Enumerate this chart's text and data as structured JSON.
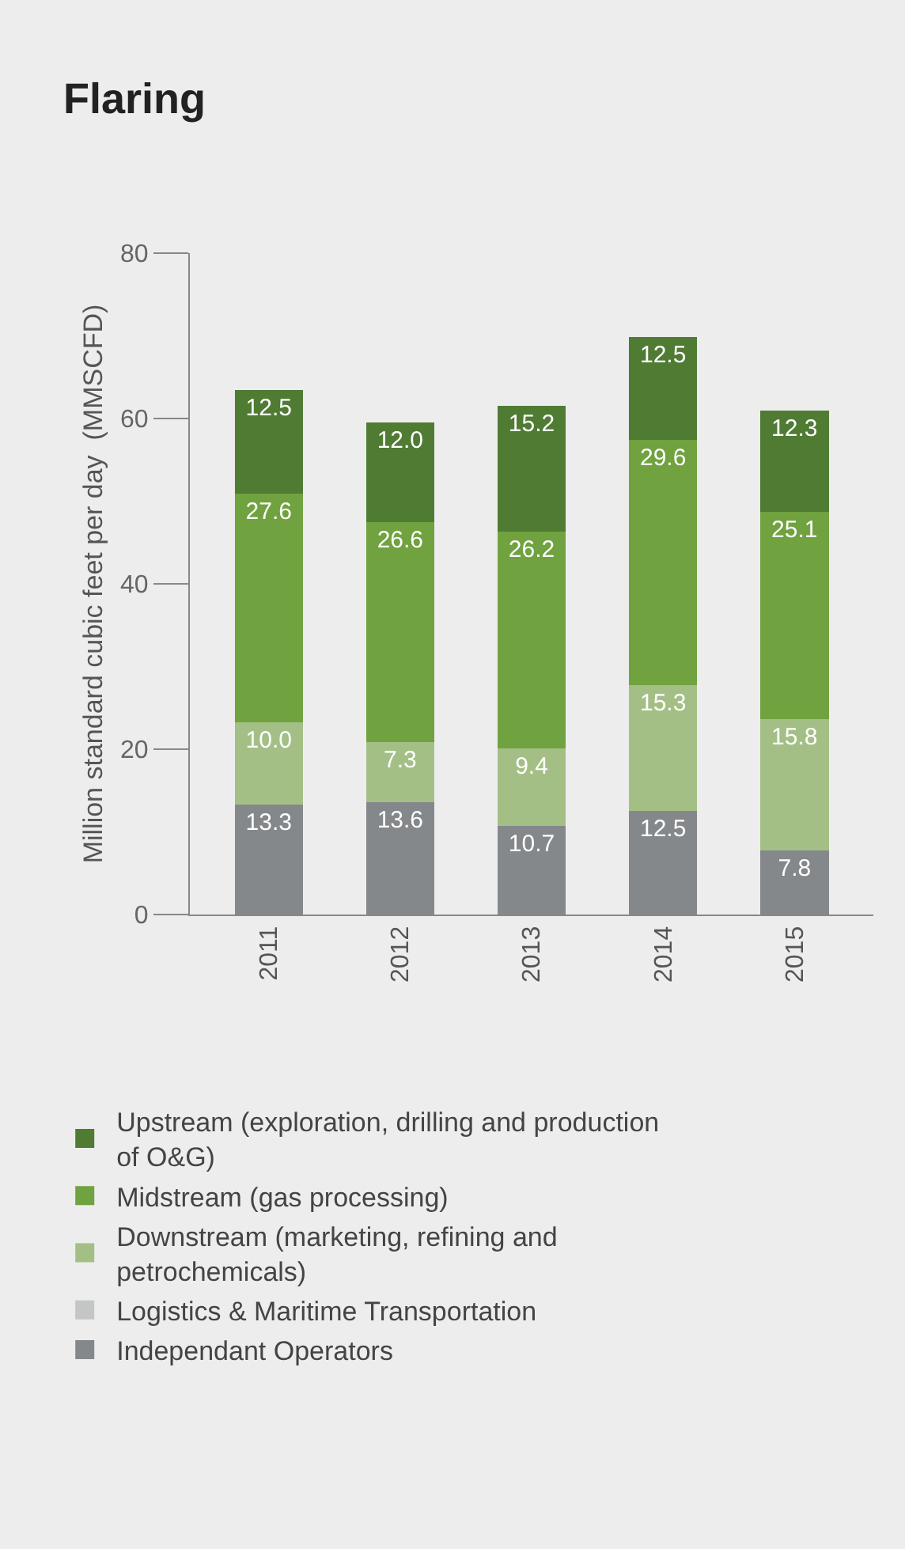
{
  "chart_data": {
    "type": "bar",
    "title": "Flaring",
    "ylabel": "Million standard cubic feet per day  (MMSCFD)",
    "categories": [
      "2011",
      "2012",
      "2013",
      "2014",
      "2015"
    ],
    "series": [
      {
        "name": "Independant Operators",
        "color": "#84888b",
        "values": [
          13.3,
          13.6,
          10.7,
          12.5,
          7.8
        ],
        "value_labels": [
          "13.3",
          "13.6",
          "10.7",
          "12.5",
          "7.8"
        ]
      },
      {
        "name": "Logistics & Maritime Transportation",
        "color": "#c3c5c7",
        "values": [
          null,
          null,
          null,
          null,
          null
        ]
      },
      {
        "name": "Downstream (marketing, refining and petrochemicals)",
        "color": "#a4bf85",
        "values": [
          10.0,
          7.3,
          9.4,
          15.3,
          15.8
        ],
        "value_labels": [
          "10.0",
          "7.3",
          "9.4",
          "15.3",
          "15.8"
        ]
      },
      {
        "name": "Midstream (gas processing)",
        "color": "#70a23f",
        "values": [
          27.6,
          26.6,
          26.2,
          29.6,
          25.1
        ],
        "value_labels": [
          "27.6",
          "26.6",
          "26.2",
          "29.6",
          "25.1"
        ]
      },
      {
        "name": "Upstream (exploration, drilling and production of O&G)",
        "color": "#4f7b33",
        "values": [
          12.5,
          12.0,
          15.2,
          12.5,
          12.3
        ],
        "value_labels": [
          "12.5",
          "12.0",
          "15.2",
          "12.5",
          "12.3"
        ]
      }
    ],
    "stacked": true,
    "ylim": [
      0,
      80
    ],
    "yticks": [
      0,
      20,
      40,
      60,
      80
    ],
    "grid": false,
    "legend": "bottom"
  }
}
